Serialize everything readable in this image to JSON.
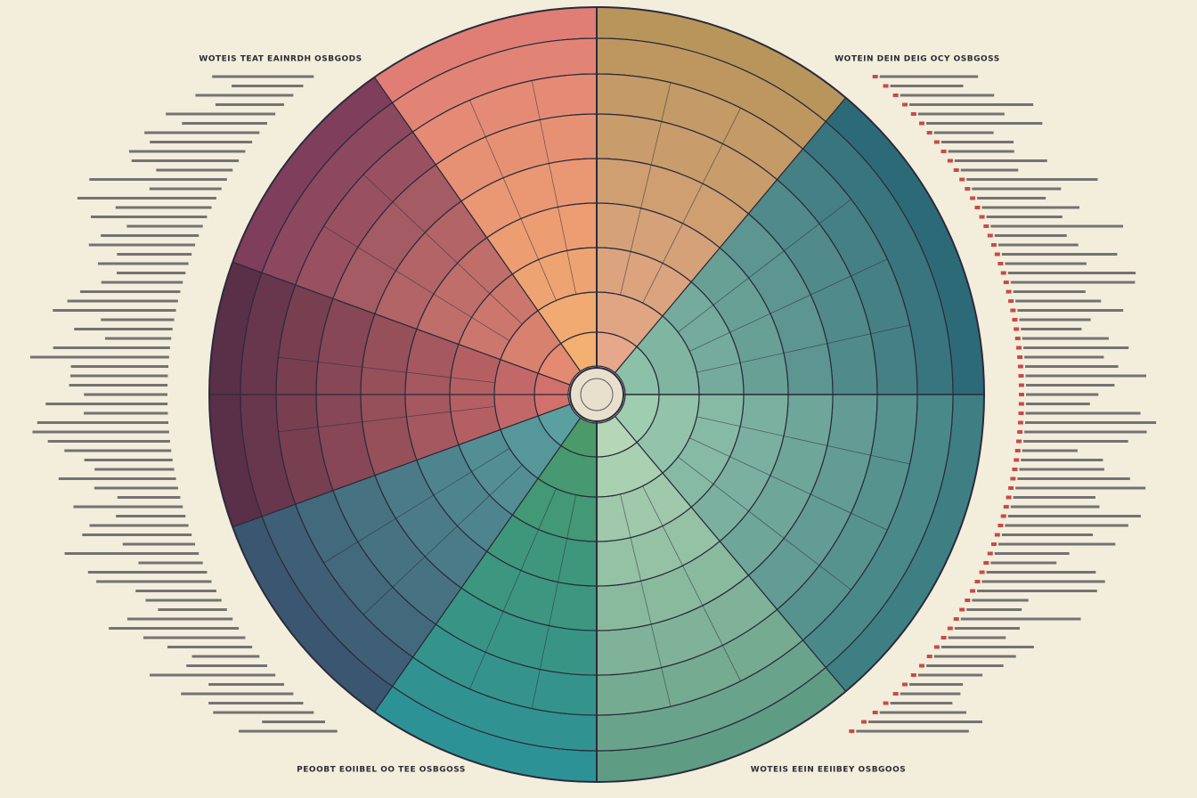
{
  "headings": {
    "top_left": "WOTEIS TEAT EAINRDH OSBGODS",
    "top_right": "WOTEIN DEIN DEIG OCY OSBGOSS",
    "bottom_left": "PEOOBT EOIIBEL OO TEE OSBGOSS",
    "bottom_right": "WOTEIS EEIN EEIIBEY OSBGOOS"
  }
}
